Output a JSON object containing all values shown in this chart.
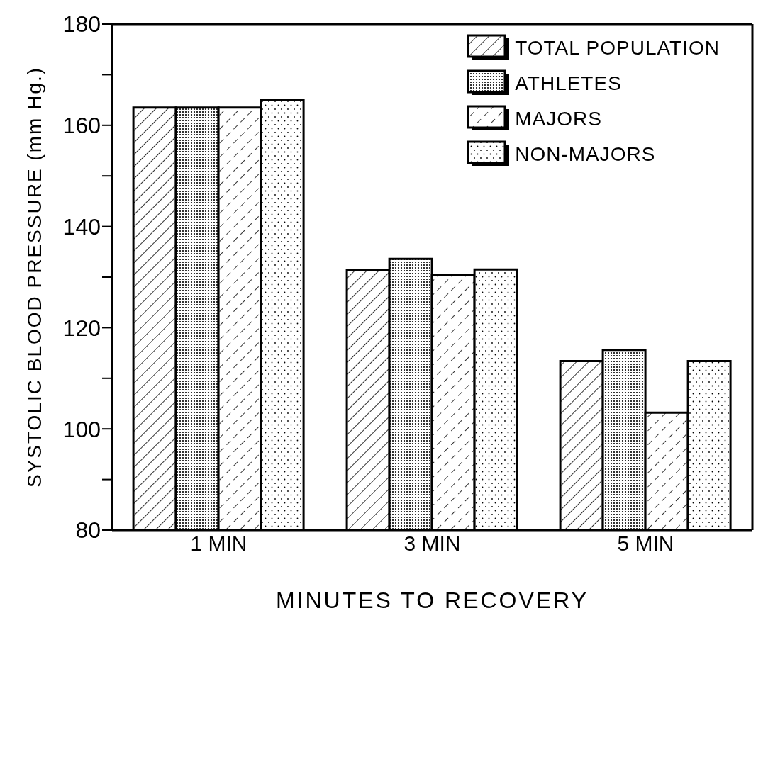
{
  "chart_data": {
    "type": "bar",
    "xlabel": "MINUTES TO RECOVERY",
    "ylabel": "SYSTOLIC BLOOD PRESSURE (mm Hg.)",
    "categories": [
      "1 MIN",
      "3 MIN",
      "5 MIN"
    ],
    "series": [
      {
        "name": "TOTAL POPULATION",
        "color": "#000000",
        "values": [
          163.5,
          131.4,
          113.4
        ]
      },
      {
        "name": "ATHLETES",
        "color": "#000000",
        "values": [
          163.5,
          133.6,
          115.6
        ]
      },
      {
        "name": "MAJORS",
        "color": "#000000",
        "values": [
          163.5,
          130.4,
          103.2
        ]
      },
      {
        "name": "NON-MAJORS",
        "color": "#000000",
        "values": [
          165,
          131.5,
          113.4
        ]
      }
    ],
    "ylim": [
      80,
      180
    ],
    "yticks": [
      80,
      {
        "value": 90,
        "label": null
      },
      100,
      {
        "value": 110,
        "label": null
      },
      120,
      {
        "value": 130,
        "label": null
      },
      140,
      {
        "value": 150,
        "label": null
      },
      160,
      {
        "value": 170,
        "label": null
      },
      180
    ],
    "legend": "top right"
  }
}
